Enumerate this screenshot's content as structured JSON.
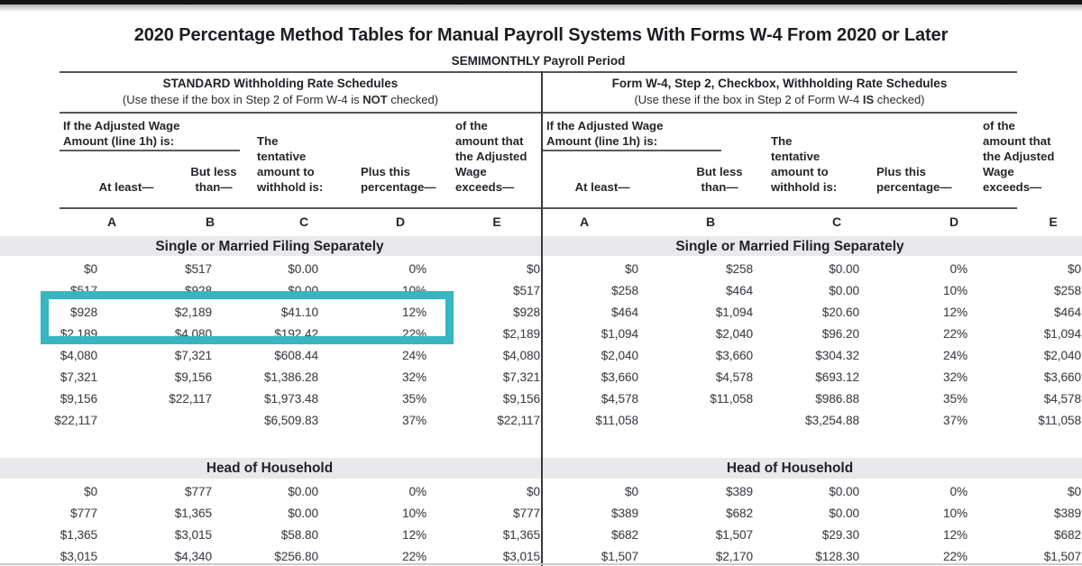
{
  "page": {
    "title": "2020 Percentage Method Tables for Manual Payroll Systems With Forms W-4 From 2020 or Later",
    "subtitle": "SEMIMONTHLY Payroll Period"
  },
  "schedules": [
    {
      "heading": "STANDARD Withholding Rate Schedules",
      "use_prefix": "(Use these if the box in Step 2 of Form W-4 is ",
      "use_bold": "NOT",
      "use_suffix": " checked)"
    },
    {
      "heading": "Form W-4, Step 2, Checkbox, Withholding Rate Schedules",
      "use_prefix": "(Use these if the box in Step 2 of Form W-4 ",
      "use_bold": "IS",
      "use_suffix": " checked)"
    }
  ],
  "column_headers": {
    "wage_caption": "If the Adjusted Wage\nAmount (line 1h) is:",
    "at_least": "At least—",
    "but_less": "But less\nthan—",
    "tentative": "The\ntentative\namount to\nwithhold is:",
    "plus_pct": "Plus this\npercentage—",
    "exceeds": "of the\namount that\nthe Adjusted\nWage\nexceeds—",
    "letters": [
      "A",
      "B",
      "C",
      "D",
      "E"
    ]
  },
  "sections": [
    {
      "label": "Single or Married Filing Separately",
      "left_rows": [
        [
          "$0",
          "$517",
          "$0.00",
          "0%",
          "$0"
        ],
        [
          "$517",
          "$928",
          "$0.00",
          "10%",
          "$517"
        ],
        [
          "$928",
          "$2,189",
          "$41.10",
          "12%",
          "$928"
        ],
        [
          "$2,189",
          "$4,080",
          "$192.42",
          "22%",
          "$2,189"
        ],
        [
          "$4,080",
          "$7,321",
          "$608.44",
          "24%",
          "$4,080"
        ],
        [
          "$7,321",
          "$9,156",
          "$1,386.28",
          "32%",
          "$7,321"
        ],
        [
          "$9,156",
          "$22,117",
          "$1,973.48",
          "35%",
          "$9,156"
        ],
        [
          "$22,117",
          "",
          "$6,509.83",
          "37%",
          "$22,117"
        ]
      ],
      "right_rows": [
        [
          "$0",
          "$258",
          "$0.00",
          "0%",
          "$0"
        ],
        [
          "$258",
          "$464",
          "$0.00",
          "10%",
          "$258"
        ],
        [
          "$464",
          "$1,094",
          "$20.60",
          "12%",
          "$464"
        ],
        [
          "$1,094",
          "$2,040",
          "$96.20",
          "22%",
          "$1,094"
        ],
        [
          "$2,040",
          "$3,660",
          "$304.32",
          "24%",
          "$2,040"
        ],
        [
          "$3,660",
          "$4,578",
          "$693.12",
          "32%",
          "$3,660"
        ],
        [
          "$4,578",
          "$11,058",
          "$986.88",
          "35%",
          "$4,578"
        ],
        [
          "$11,058",
          "",
          "$3,254.88",
          "37%",
          "$11,058"
        ]
      ]
    },
    {
      "label": "Head of Household",
      "left_rows": [
        [
          "$0",
          "$777",
          "$0.00",
          "0%",
          "$0"
        ],
        [
          "$777",
          "$1,365",
          "$0.00",
          "10%",
          "$777"
        ],
        [
          "$1,365",
          "$3,015",
          "$58.80",
          "12%",
          "$1,365"
        ],
        [
          "$3,015",
          "$4,340",
          "$256.80",
          "22%",
          "$3,015"
        ]
      ],
      "right_rows": [
        [
          "$0",
          "$389",
          "$0.00",
          "0%",
          "$0"
        ],
        [
          "$389",
          "$682",
          "$0.00",
          "10%",
          "$389"
        ],
        [
          "$682",
          "$1,507",
          "$29.30",
          "12%",
          "$682"
        ],
        [
          "$1,507",
          "$2,170",
          "$128.30",
          "22%",
          "$1,507"
        ]
      ]
    }
  ],
  "highlight": {
    "color": "#36b6c0",
    "highlighted_row": [
      "$928",
      "$2,189",
      "$41.10",
      "12%",
      "$928"
    ]
  }
}
